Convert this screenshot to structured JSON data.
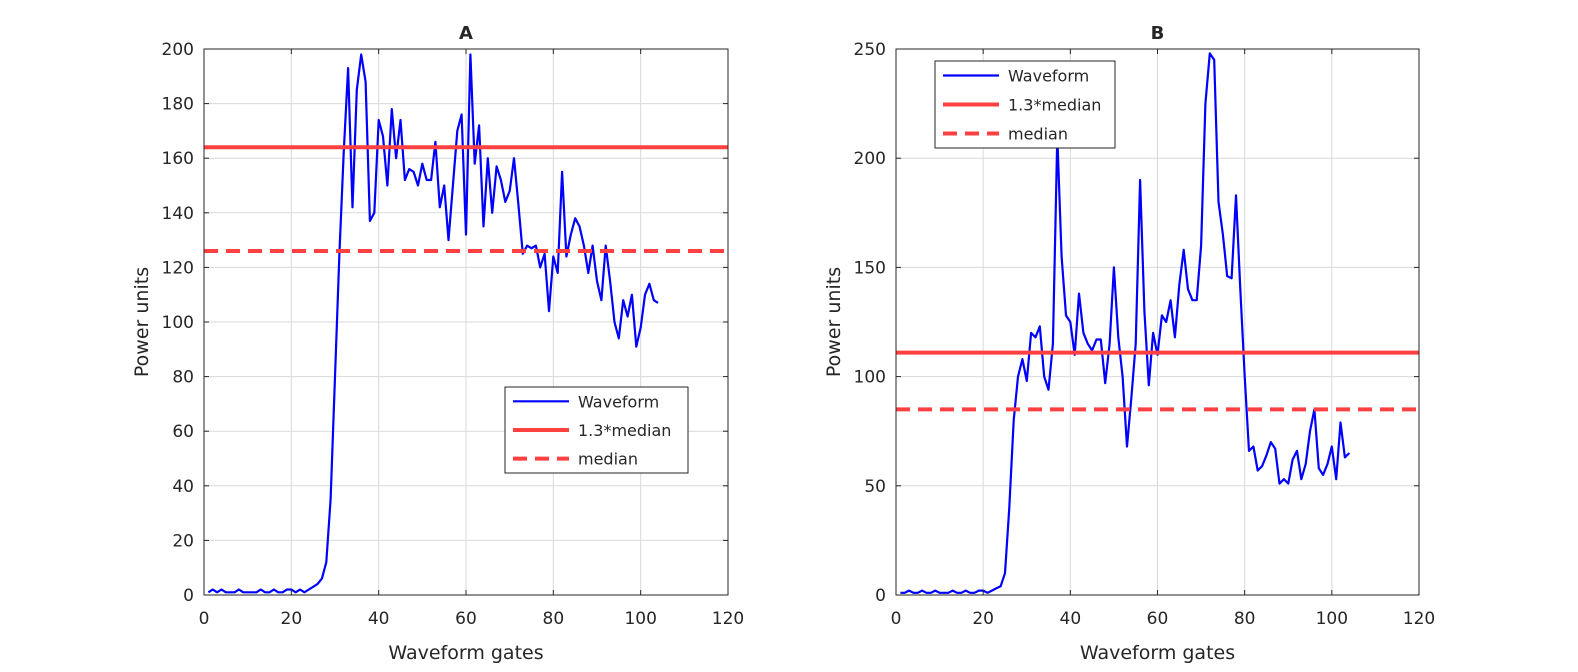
{
  "chart_data": [
    {
      "type": "line",
      "title": "A",
      "xlabel": "Waveform gates",
      "ylabel": "Power units",
      "xlim": [
        0,
        120
      ],
      "ylim": [
        0,
        200
      ],
      "xticks": [
        0,
        20,
        40,
        60,
        80,
        100,
        120
      ],
      "yticks": [
        0,
        20,
        40,
        60,
        80,
        100,
        120,
        140,
        160,
        180,
        200
      ],
      "grid": true,
      "legend_position": "bottom-right",
      "series": [
        {
          "name": "Waveform",
          "color": "#0000ff",
          "style": "solid",
          "x": [
            1,
            2,
            3,
            4,
            5,
            6,
            7,
            8,
            9,
            10,
            11,
            12,
            13,
            14,
            15,
            16,
            17,
            18,
            19,
            20,
            21,
            22,
            23,
            24,
            25,
            26,
            27,
            28,
            29,
            30,
            31,
            32,
            33,
            34,
            35,
            36,
            37,
            38,
            39,
            40,
            41,
            42,
            43,
            44,
            45,
            46,
            47,
            48,
            49,
            50,
            51,
            52,
            53,
            54,
            55,
            56,
            57,
            58,
            59,
            60,
            61,
            62,
            63,
            64,
            65,
            66,
            67,
            68,
            69,
            70,
            71,
            72,
            73,
            74,
            75,
            76,
            77,
            78,
            79,
            80,
            81,
            82,
            83,
            84,
            85,
            86,
            87,
            88,
            89,
            90,
            91,
            92,
            93,
            94,
            95,
            96,
            97,
            98,
            99,
            100,
            101,
            102,
            103,
            104
          ],
          "values": [
            1,
            2,
            1,
            2,
            1,
            1,
            1,
            2,
            1,
            1,
            1,
            1,
            2,
            1,
            1,
            2,
            1,
            1,
            2,
            2,
            1,
            2,
            1,
            2,
            3,
            4,
            6,
            12,
            35,
            80,
            125,
            162,
            193,
            142,
            185,
            198,
            188,
            137,
            140,
            174,
            168,
            150,
            178,
            160,
            174,
            152,
            156,
            155,
            150,
            158,
            152,
            152,
            166,
            142,
            150,
            130,
            150,
            170,
            176,
            132,
            198,
            158,
            172,
            135,
            160,
            140,
            157,
            152,
            144,
            148,
            160,
            143,
            125,
            128,
            127,
            128,
            120,
            125,
            104,
            124,
            118,
            155,
            124,
            132,
            138,
            135,
            128,
            118,
            128,
            115,
            108,
            128,
            115,
            100,
            94,
            108,
            102,
            110,
            91,
            98,
            110,
            114,
            108,
            107
          ]
        },
        {
          "name": "1.3*median",
          "color": "#ff4040",
          "style": "solid",
          "x": [
            0,
            120
          ],
          "values": [
            164,
            164
          ]
        },
        {
          "name": "median",
          "color": "#ff4040",
          "style": "dashed",
          "x": [
            0,
            120
          ],
          "values": [
            126,
            126
          ]
        }
      ]
    },
    {
      "type": "line",
      "title": "B",
      "xlabel": "Waveform gates",
      "ylabel": "Power units",
      "xlim": [
        0,
        120
      ],
      "ylim": [
        0,
        250
      ],
      "xticks": [
        0,
        20,
        40,
        60,
        80,
        100,
        120
      ],
      "yticks": [
        0,
        50,
        100,
        150,
        200,
        250
      ],
      "grid": true,
      "legend_position": "top-left",
      "series": [
        {
          "name": "Waveform",
          "color": "#0000ff",
          "style": "solid",
          "x": [
            1,
            2,
            3,
            4,
            5,
            6,
            7,
            8,
            9,
            10,
            11,
            12,
            13,
            14,
            15,
            16,
            17,
            18,
            19,
            20,
            21,
            22,
            23,
            24,
            25,
            26,
            27,
            28,
            29,
            30,
            31,
            32,
            33,
            34,
            35,
            36,
            37,
            38,
            39,
            40,
            41,
            42,
            43,
            44,
            45,
            46,
            47,
            48,
            49,
            50,
            51,
            52,
            53,
            54,
            55,
            56,
            57,
            58,
            59,
            60,
            61,
            62,
            63,
            64,
            65,
            66,
            67,
            68,
            69,
            70,
            71,
            72,
            73,
            74,
            75,
            76,
            77,
            78,
            79,
            80,
            81,
            82,
            83,
            84,
            85,
            86,
            87,
            88,
            89,
            90,
            91,
            92,
            93,
            94,
            95,
            96,
            97,
            98,
            99,
            100,
            101,
            102,
            103,
            104
          ],
          "values": [
            1,
            1,
            2,
            1,
            1,
            2,
            1,
            1,
            2,
            1,
            1,
            1,
            2,
            1,
            1,
            2,
            1,
            1,
            2,
            2,
            1,
            2,
            3,
            4,
            10,
            40,
            80,
            100,
            108,
            98,
            120,
            118,
            123,
            100,
            94,
            115,
            210,
            155,
            128,
            125,
            110,
            138,
            120,
            115,
            112,
            117,
            117,
            97,
            115,
            150,
            118,
            100,
            68,
            90,
            115,
            190,
            130,
            96,
            120,
            110,
            128,
            125,
            135,
            118,
            142,
            158,
            140,
            135,
            135,
            160,
            225,
            248,
            245,
            180,
            165,
            146,
            145,
            183,
            140,
            100,
            66,
            68,
            57,
            59,
            64,
            70,
            67,
            51,
            53,
            51,
            62,
            66,
            53,
            60,
            75,
            85,
            58,
            55,
            60,
            68,
            53,
            79,
            63,
            65
          ]
        },
        {
          "name": "1.3*median",
          "color": "#ff4040",
          "style": "solid",
          "x": [
            0,
            120
          ],
          "values": [
            111,
            111
          ]
        },
        {
          "name": "median",
          "color": "#ff4040",
          "style": "dashed",
          "x": [
            0,
            120
          ],
          "values": [
            85,
            85
          ]
        }
      ]
    }
  ]
}
